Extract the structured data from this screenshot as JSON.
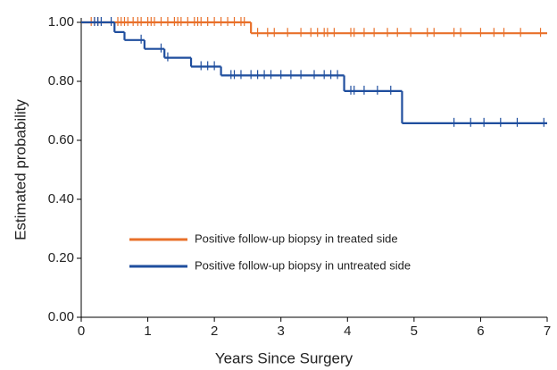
{
  "chart_data": {
    "type": "survival",
    "xlabel": "Years Since Surgery",
    "ylabel": "Estimated probability",
    "xlim": [
      0,
      7
    ],
    "ylim": [
      0,
      1
    ],
    "xticks": [
      0,
      1,
      2,
      3,
      4,
      5,
      6,
      7
    ],
    "yticks": [
      {
        "value": 0,
        "label": "0.00"
      },
      {
        "value": 0.2,
        "label": "0.20"
      },
      {
        "value": 0.4,
        "label": "0.40"
      },
      {
        "value": 0.6,
        "label": "0.60"
      },
      {
        "value": 0.8,
        "label": "0.80"
      },
      {
        "value": 1,
        "label": "1.00"
      }
    ],
    "grid": false,
    "legend_position": "center-left",
    "series": [
      {
        "name": "Positive follow-up biopsy in treated side",
        "color": "#e8702a",
        "x": [
          0,
          2.55
        ],
        "values": [
          1.0,
          0.963
        ],
        "censored": [
          0.15,
          0.2,
          0.25,
          0.55,
          0.6,
          0.65,
          0.7,
          0.78,
          0.85,
          0.9,
          1.0,
          1.05,
          1.1,
          1.2,
          1.3,
          1.4,
          1.45,
          1.5,
          1.6,
          1.7,
          1.75,
          1.8,
          1.9,
          2.0,
          2.1,
          2.2,
          2.3,
          2.4,
          2.45,
          2.65,
          2.8,
          2.9,
          3.1,
          3.3,
          3.45,
          3.55,
          3.65,
          3.7,
          3.8,
          4.05,
          4.1,
          4.25,
          4.4,
          4.6,
          4.75,
          4.95,
          5.2,
          5.3,
          5.6,
          5.7,
          6.0,
          6.2,
          6.35,
          6.6,
          6.9
        ]
      },
      {
        "name": "Positive follow-up biopsy in untreated side",
        "color": "#1f4e9e",
        "x": [
          0,
          0.5,
          0.65,
          0.95,
          1.25,
          1.65,
          2.1,
          3.95,
          4.82
        ],
        "values": [
          1.0,
          0.967,
          0.94,
          0.91,
          0.88,
          0.85,
          0.82,
          0.767,
          0.658
        ],
        "censored": [
          0.2,
          0.25,
          0.3,
          0.45,
          0.9,
          1.2,
          1.3,
          1.8,
          1.9,
          2.0,
          2.25,
          2.3,
          2.4,
          2.55,
          2.65,
          2.75,
          2.85,
          3.0,
          3.15,
          3.3,
          3.5,
          3.65,
          3.75,
          3.85,
          4.05,
          4.1,
          4.25,
          4.45,
          4.65,
          5.6,
          5.85,
          6.05,
          6.3,
          6.55,
          6.95
        ]
      }
    ]
  }
}
